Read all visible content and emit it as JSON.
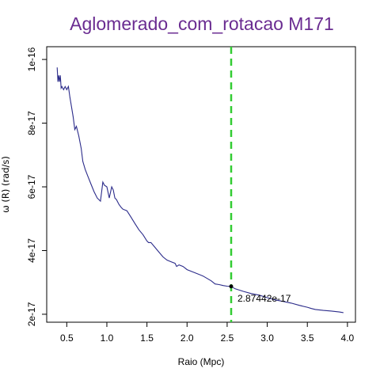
{
  "chart_data": {
    "type": "line",
    "title": "Aglomerado_com_rotacao M171",
    "xlabel": "Raio (Mpc)",
    "ylabel": "ω (R) (rad/s)",
    "xlim": [
      0.25,
      4.1
    ],
    "ylim": [
      1.75e-17,
      1.04e-16
    ],
    "x_ticks": [
      {
        "value": 0.5,
        "label": "0.5"
      },
      {
        "value": 1.0,
        "label": "1.0"
      },
      {
        "value": 1.5,
        "label": "1.5"
      },
      {
        "value": 2.0,
        "label": "2.0"
      },
      {
        "value": 2.5,
        "label": "2.5"
      },
      {
        "value": 3.0,
        "label": "3.0"
      },
      {
        "value": 3.5,
        "label": "3.5"
      },
      {
        "value": 4.0,
        "label": "4.0"
      }
    ],
    "y_ticks": [
      {
        "value": 2e-17,
        "label": "2e-17"
      },
      {
        "value": 4e-17,
        "label": "4e-17"
      },
      {
        "value": 6e-17,
        "label": "6e-17"
      },
      {
        "value": 8e-17,
        "label": "8e-17"
      },
      {
        "value": 1e-16,
        "label": "1e-16"
      }
    ],
    "grid": false,
    "colors": {
      "title": "#6a2c91",
      "series": "#2b2b8a",
      "vline": "#33cc33",
      "marker": "#000000",
      "axis": "#000000"
    },
    "series": [
      {
        "x": [
          0.38,
          0.39,
          0.4,
          0.41,
          0.42,
          0.43,
          0.44,
          0.46,
          0.48,
          0.5,
          0.52,
          0.54,
          0.56,
          0.58,
          0.6,
          0.62,
          0.65,
          0.68,
          0.7,
          0.73,
          0.76,
          0.8,
          0.84,
          0.88,
          0.92,
          0.95,
          0.97,
          1.0,
          1.03,
          1.06,
          1.08,
          1.1,
          1.12,
          1.15,
          1.18,
          1.2,
          1.25,
          1.3,
          1.35,
          1.4,
          1.45,
          1.5,
          1.52,
          1.55,
          1.6,
          1.65,
          1.7,
          1.75,
          1.8,
          1.85,
          1.87,
          1.9,
          1.95,
          2.0,
          2.1,
          2.2,
          2.3,
          2.35,
          2.4,
          2.45,
          2.5,
          2.55,
          2.6,
          2.7,
          2.8,
          2.9,
          3.0,
          3.1,
          3.2,
          3.3,
          3.4,
          3.5,
          3.55,
          3.6,
          3.7,
          3.8,
          3.9,
          3.95
        ],
        "y": [
          9.75e-17,
          9.3e-17,
          9.5e-17,
          9.3e-17,
          9.5e-17,
          9.1e-17,
          9.15e-17,
          9.05e-17,
          9.15e-17,
          9.05e-17,
          9.15e-17,
          8.8e-17,
          8.5e-17,
          8.2e-17,
          7.8e-17,
          7.9e-17,
          7.6e-17,
          7.2e-17,
          6.8e-17,
          6.55e-17,
          6.35e-17,
          6.1e-17,
          5.85e-17,
          5.65e-17,
          5.55e-17,
          6.15e-17,
          6.05e-17,
          6e-17,
          5.65e-17,
          6e-17,
          5.9e-17,
          5.65e-17,
          5.6e-17,
          5.45e-17,
          5.35e-17,
          5.3e-17,
          5.25e-17,
          5.05e-17,
          4.85e-17,
          4.65e-17,
          4.5e-17,
          4.3e-17,
          4.25e-17,
          4.25e-17,
          4.1e-17,
          3.95e-17,
          3.8e-17,
          3.7e-17,
          3.65e-17,
          3.6e-17,
          3.5e-17,
          3.55e-17,
          3.5e-17,
          3.4e-17,
          3.3e-17,
          3.2e-17,
          3.05e-17,
          2.95e-17,
          2.93e-17,
          2.9e-17,
          2.88e-17,
          2.87e-17,
          2.8e-17,
          2.72e-17,
          2.65e-17,
          2.6e-17,
          2.52e-17,
          2.45e-17,
          2.4e-17,
          2.35e-17,
          2.28e-17,
          2.22e-17,
          2.18e-17,
          2.15e-17,
          2.12e-17,
          2.1e-17,
          2.07e-17,
          2.05e-17
        ]
      }
    ],
    "vline": {
      "x": 2.55
    },
    "marker": {
      "x": 2.55,
      "y": 2.87442e-17,
      "label": "2.87442e-17"
    }
  }
}
